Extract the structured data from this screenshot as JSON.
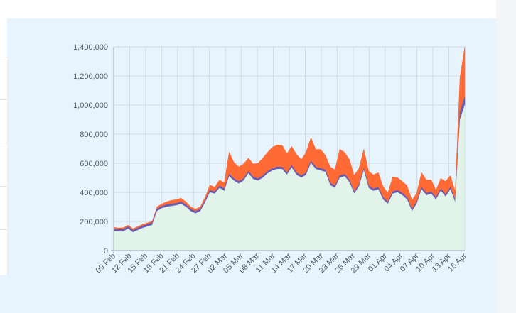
{
  "chart_data": {
    "type": "area",
    "title": "",
    "xlabel": "",
    "ylabel": "",
    "stacked": true,
    "ylim": [
      0,
      1400000
    ],
    "y_ticks": [
      "0",
      "200,000",
      "400,000",
      "600,000",
      "800,000",
      "1,000,000",
      "1,200,000",
      "1,400,000"
    ],
    "y_tick_values": [
      0,
      200000,
      400000,
      600000,
      800000,
      1000000,
      1200000,
      1400000
    ],
    "x_tick_labels": [
      "09 Feb",
      "12 Feb",
      "15 Feb",
      "18 Feb",
      "21 Feb",
      "24 Feb",
      "27 Feb",
      "02 Mar",
      "05 Mar",
      "08 Mar",
      "11 Mar",
      "14 Mar",
      "17 Mar",
      "20 Mar",
      "23 Mar",
      "26 Mar",
      "29 Mar",
      "01 Apr",
      "04 Apr",
      "07 Apr",
      "10 Apr",
      "13 Apr",
      "16 Apr"
    ],
    "grid": true,
    "colors": {
      "base": "#e2f3ea",
      "middle": "#6a5bb5",
      "top": "#ff6a35",
      "grid": "#cfdbe4",
      "axis": "#9aa8b3"
    },
    "series": [
      {
        "values": [
          135000,
          130000,
          132000,
          150000,
          125000,
          140000,
          155000,
          165000,
          175000,
          270000,
          290000,
          300000,
          305000,
          310000,
          320000,
          300000,
          270000,
          255000,
          270000,
          330000,
          400000,
          390000,
          430000,
          410000,
          510000,
          480000,
          460000,
          480000,
          530000,
          490000,
          480000,
          500000,
          530000,
          550000,
          560000,
          560000,
          520000,
          570000,
          520000,
          500000,
          520000,
          600000,
          560000,
          550000,
          540000,
          450000,
          430000,
          500000,
          510000,
          470000,
          390000,
          440000,
          550000,
          430000,
          410000,
          420000,
          350000,
          320000,
          390000,
          400000,
          380000,
          350000,
          270000,
          320000,
          420000,
          380000,
          390000,
          350000,
          410000,
          370000,
          420000,
          330000,
          900000,
          1000000
        ]
      },
      {
        "values": [
          15000,
          15000,
          15000,
          15000,
          15000,
          15000,
          15000,
          15000,
          15000,
          15000,
          15000,
          15000,
          15000,
          15000,
          15000,
          15000,
          15000,
          15000,
          15000,
          15000,
          15000,
          15000,
          15000,
          15000,
          15000,
          15000,
          15000,
          15000,
          15000,
          15000,
          15000,
          15000,
          15000,
          15000,
          15000,
          15000,
          15000,
          15000,
          15000,
          15000,
          15000,
          15000,
          15000,
          15000,
          15000,
          15000,
          15000,
          15000,
          15000,
          15000,
          15000,
          15000,
          15000,
          15000,
          15000,
          15000,
          15000,
          15000,
          15000,
          15000,
          15000,
          15000,
          15000,
          15000,
          15000,
          15000,
          15000,
          15000,
          15000,
          15000,
          15000,
          15000,
          50000,
          60000
        ]
      },
      {
        "values": [
          10000,
          10000,
          10000,
          10000,
          10000,
          10000,
          10000,
          10000,
          10000,
          15000,
          15000,
          20000,
          25000,
          25000,
          25000,
          20000,
          15000,
          15000,
          15000,
          20000,
          35000,
          30000,
          40000,
          40000,
          150000,
          110000,
          100000,
          100000,
          90000,
          90000,
          105000,
          120000,
          130000,
          145000,
          150000,
          150000,
          130000,
          130000,
          125000,
          110000,
          140000,
          160000,
          120000,
          130000,
          100000,
          110000,
          110000,
          180000,
          150000,
          140000,
          110000,
          110000,
          130000,
          100000,
          95000,
          100000,
          75000,
          60000,
          100000,
          85000,
          80000,
          80000,
          60000,
          60000,
          100000,
          90000,
          80000,
          50000,
          70000,
          90000,
          80000,
          60000,
          240000,
          340000
        ]
      }
    ]
  }
}
